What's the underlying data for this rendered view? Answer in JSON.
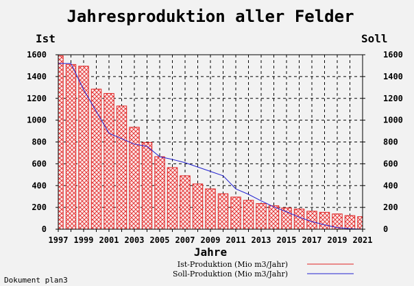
{
  "chart_data": {
    "type": "bar",
    "title": "Jahresproduktion aller Felder",
    "ylabel_left": "Ist",
    "ylabel_right": "Soll",
    "xlabel": "Jahre",
    "ylim": [
      0,
      1600
    ],
    "yticks": [
      "0",
      "200",
      "400",
      "600",
      "800",
      "1000",
      "1200",
      "1400",
      "1600"
    ],
    "xtick_labels": [
      "1997",
      "1999",
      "2001",
      "2003",
      "2005",
      "2007",
      "2009",
      "2011",
      "2013",
      "2015",
      "2017",
      "2019",
      "2021"
    ],
    "grid": true,
    "categories": [
      "1997",
      "1998",
      "1999",
      "2000",
      "2001",
      "2002",
      "2003",
      "2004",
      "2005",
      "2006",
      "2007",
      "2008",
      "2009",
      "2010",
      "2011",
      "2012",
      "2013",
      "2014",
      "2015",
      "2016",
      "2017",
      "2018",
      "2019",
      "2020",
      "2021"
    ],
    "series": [
      {
        "name": "Ist-Produktion (Mio m3/Jahr)",
        "type": "bar",
        "color": "#e02020",
        "values": [
          1590,
          1510,
          1495,
          1285,
          1245,
          1130,
          935,
          795,
          665,
          565,
          490,
          415,
          370,
          325,
          295,
          265,
          235,
          215,
          195,
          185,
          165,
          155,
          140,
          125,
          115
        ]
      },
      {
        "name": "Soll-Produktion (Mio m3/Jahr)",
        "type": "line",
        "color": "#2020d0",
        "values": [
          1520,
          1520,
          1280,
          1080,
          880,
          830,
          780,
          760,
          665,
          640,
          610,
          570,
          530,
          490,
          370,
          320,
          260,
          205,
          160,
          110,
          70,
          40,
          15,
          5,
          0
        ]
      }
    ]
  },
  "footer": {
    "document_label": "Dokument plan3"
  }
}
